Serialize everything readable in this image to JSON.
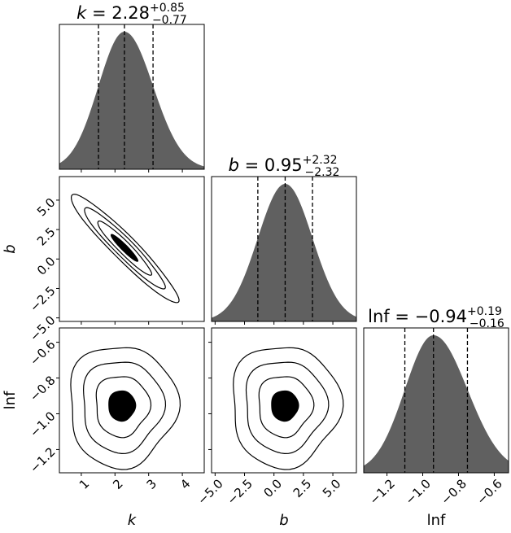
{
  "chart_data": {
    "type": "corner",
    "params": [
      {
        "key": "k",
        "label": "k",
        "italic": true,
        "median": 2.28,
        "plus": 0.85,
        "minus": 0.77,
        "median_text": "2.28",
        "plus_text": "+0.85",
        "minus_text": "−0.77",
        "range": [
          0.35,
          4.65
        ],
        "ticks": [
          1,
          2,
          3,
          4
        ],
        "tick_labels": [
          "1",
          "2",
          "3",
          "4"
        ]
      },
      {
        "key": "b",
        "label": "b",
        "italic": true,
        "median": 0.95,
        "plus": 2.32,
        "minus": 2.32,
        "median_text": "0.95",
        "plus_text": "+2.32",
        "minus_text": "−2.32",
        "range": [
          -5.3,
          7.0
        ],
        "ticks": [
          -5,
          -2.5,
          0,
          2.5,
          5
        ],
        "tick_labels": [
          "−5.0",
          "−2.5",
          "0.0",
          "2.5",
          "5.0"
        ]
      },
      {
        "key": "lnf",
        "label": "lnf",
        "italic": false,
        "median": -0.94,
        "plus": 0.19,
        "minus": 0.16,
        "median_text": "−0.94",
        "plus_text": "+0.19",
        "minus_text": "−0.16",
        "range": [
          -1.33,
          -0.52
        ],
        "ticks": [
          -1.2,
          -1.0,
          -0.8,
          -0.6
        ],
        "tick_labels": [
          "−1.2",
          "−1.0",
          "−0.8",
          "−0.6"
        ]
      }
    ],
    "title_eq": "=",
    "correlation": [
      {
        "x": "k",
        "y": "b",
        "center": [
          2.28,
          0.95
        ],
        "sd": [
          0.8,
          2.3
        ],
        "rho": -0.95
      },
      {
        "x": "k",
        "y": "lnf",
        "center": [
          2.2,
          -0.955
        ],
        "sd": [
          0.8,
          0.17
        ],
        "rho": 0.0
      },
      {
        "x": "b",
        "y": "lnf",
        "center": [
          0.9,
          -0.955
        ],
        "sd": [
          2.3,
          0.17
        ],
        "rho": 0.0
      }
    ],
    "contour_levels_sigma": [
      0.5,
      1.0,
      1.5,
      2.0
    ],
    "hist_color": "#606060",
    "line_color": "#000000",
    "quantile_line_style": "dashed"
  }
}
